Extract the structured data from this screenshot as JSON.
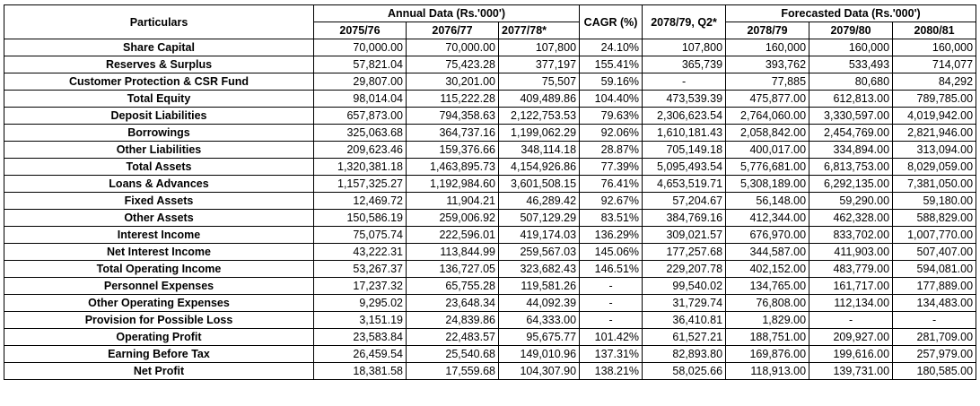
{
  "header": {
    "particulars": "Particulars",
    "annual_group": "Annual Data (Rs.'000')",
    "cagr": "CAGR (%)",
    "q2": "2078/79, Q2*",
    "forecast_group": "Forecasted Data (Rs.'000')",
    "annual_years": [
      "2075/76",
      "2076/77",
      "2077/78*"
    ],
    "forecast_years": [
      "2078/79",
      "2079/80",
      "2080/81"
    ]
  },
  "rows": [
    {
      "label": "Share Capital",
      "values": [
        "70,000.00",
        "70,000.00",
        "107,800",
        "24.10%",
        "107,800",
        "160,000",
        "160,000",
        "160,000"
      ]
    },
    {
      "label": "Reserves & Surplus",
      "values": [
        "57,821.04",
        "75,423.28",
        "377,197",
        "155.41%",
        "365,739",
        "393,762",
        "533,493",
        "714,077"
      ]
    },
    {
      "label": "Customer Protection & CSR Fund",
      "values": [
        "29,807.00",
        "30,201.00",
        "75,507",
        "59.16%",
        "-",
        "77,885",
        "80,680",
        "84,292"
      ]
    },
    {
      "label": "Total Equity",
      "values": [
        "98,014.04",
        "115,222.28",
        "409,489.86",
        "104.40%",
        "473,539.39",
        "475,877.00",
        "612,813.00",
        "789,785.00"
      ]
    },
    {
      "label": "Deposit Liabilities",
      "values": [
        "657,873.00",
        "794,358.63",
        "2,122,753.53",
        "79.63%",
        "2,306,623.54",
        "2,764,060.00",
        "3,330,597.00",
        "4,019,942.00"
      ]
    },
    {
      "label": "Borrowings",
      "values": [
        "325,063.68",
        "364,737.16",
        "1,199,062.29",
        "92.06%",
        "1,610,181.43",
        "2,058,842.00",
        "2,454,769.00",
        "2,821,946.00"
      ]
    },
    {
      "label": "Other Liabilities",
      "values": [
        "209,623.46",
        "159,376.66",
        "348,114.18",
        "28.87%",
        "705,149.18",
        "400,017.00",
        "334,894.00",
        "313,094.00"
      ]
    },
    {
      "label": "Total Assets",
      "values": [
        "1,320,381.18",
        "1,463,895.73",
        "4,154,926.86",
        "77.39%",
        "5,095,493.54",
        "5,776,681.00",
        "6,813,753.00",
        "8,029,059.00"
      ]
    },
    {
      "label": "Loans & Advances",
      "values": [
        "1,157,325.27",
        "1,192,984.60",
        "3,601,508.15",
        "76.41%",
        "4,653,519.71",
        "5,308,189.00",
        "6,292,135.00",
        "7,381,050.00"
      ]
    },
    {
      "label": "Fixed Assets",
      "values": [
        "12,469.72",
        "11,904.21",
        "46,289.42",
        "92.67%",
        "57,204.67",
        "56,148.00",
        "59,290.00",
        "59,180.00"
      ]
    },
    {
      "label": "Other Assets",
      "values": [
        "150,586.19",
        "259,006.92",
        "507,129.29",
        "83.51%",
        "384,769.16",
        "412,344.00",
        "462,328.00",
        "588,829.00"
      ]
    },
    {
      "label": "Interest Income",
      "values": [
        "75,075.74",
        "222,596.01",
        "419,174.03",
        "136.29%",
        "309,021.57",
        "676,970.00",
        "833,702.00",
        "1,007,770.00"
      ]
    },
    {
      "label": "Net Interest Income",
      "values": [
        "43,222.31",
        "113,844.99",
        "259,567.03",
        "145.06%",
        "177,257.68",
        "344,587.00",
        "411,903.00",
        "507,407.00"
      ]
    },
    {
      "label": "Total Operating Income",
      "values": [
        "53,267.37",
        "136,727.05",
        "323,682.43",
        "146.51%",
        "229,207.78",
        "402,152.00",
        "483,779.00",
        "594,081.00"
      ]
    },
    {
      "label": "Personnel Expenses",
      "values": [
        "17,237.32",
        "65,755.28",
        "119,581.26",
        "-",
        "99,540.02",
        "134,765.00",
        "161,717.00",
        "177,889.00"
      ]
    },
    {
      "label": "Other Operating Expenses",
      "values": [
        "9,295.02",
        "23,648.34",
        "44,092.39",
        "-",
        "31,729.74",
        "76,808.00",
        "112,134.00",
        "134,483.00"
      ]
    },
    {
      "label": "Provision for Possible Loss",
      "values": [
        "3,151.19",
        "24,839.86",
        "64,333.00",
        "-",
        "36,410.81",
        "1,829.00",
        "-",
        "-"
      ]
    },
    {
      "label": "Operating Profit",
      "values": [
        "23,583.84",
        "22,483.57",
        "95,675.77",
        "101.42%",
        "61,527.21",
        "188,751.00",
        "209,927.00",
        "281,709.00"
      ]
    },
    {
      "label": "Earning Before Tax",
      "values": [
        "26,459.54",
        "25,540.68",
        "149,010.96",
        "137.31%",
        "82,893.80",
        "169,876.00",
        "199,616.00",
        "257,979.00"
      ]
    },
    {
      "label": "Net Profit",
      "values": [
        "18,381.58",
        "17,559.68",
        "104,307.90",
        "138.21%",
        "58,025.66",
        "118,913.00",
        "139,731.00",
        "180,585.00"
      ]
    }
  ]
}
